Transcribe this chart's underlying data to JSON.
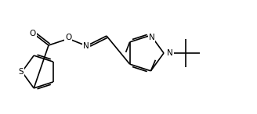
{
  "bg_color": "#ffffff",
  "line_color": "#000000",
  "line_width": 1.2,
  "font_size": 7.5,
  "figsize": [
    3.28,
    1.46
  ],
  "dpi": 100,
  "xlim": [
    0,
    328
  ],
  "ylim": [
    0,
    146
  ]
}
